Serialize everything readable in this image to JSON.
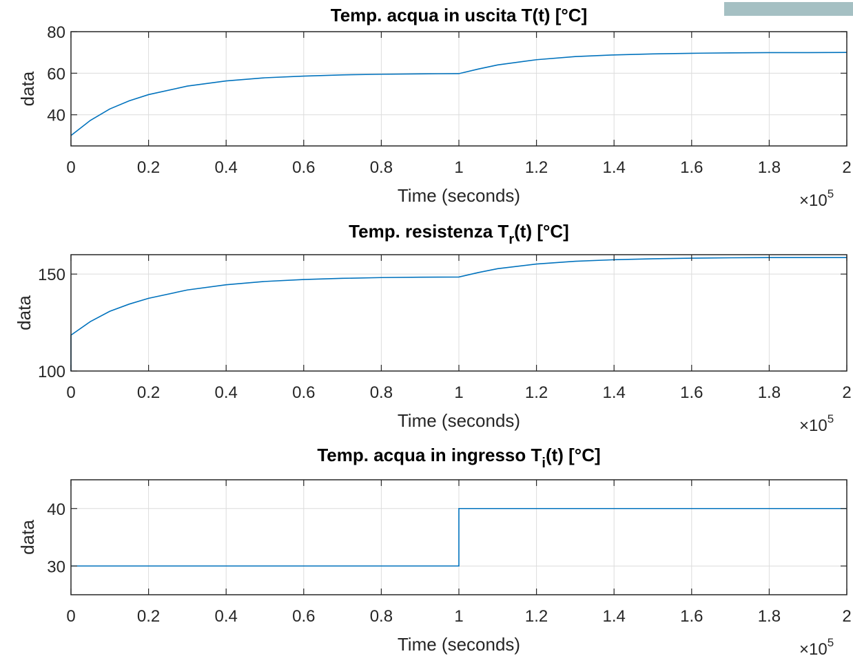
{
  "corner_bar_color": "#a5c0c3",
  "chart_data": [
    {
      "type": "line",
      "title": "Temp. acqua in uscita T(t) [°C]",
      "title_main": "Temp. acqua in uscita T(t) [°C]",
      "title_sub": "",
      "title_tail": "",
      "xlabel": "Time (seconds)",
      "ylabel": "data",
      "x_multiplier": "×10",
      "x_multiplier_exp": "5",
      "xlim": [
        0,
        200000
      ],
      "ylim": [
        25,
        80
      ],
      "xticks": [
        0,
        20000,
        40000,
        60000,
        80000,
        100000,
        120000,
        140000,
        160000,
        180000,
        200000
      ],
      "xtick_labels": [
        "0",
        "0.2",
        "0.4",
        "0.6",
        "0.8",
        "1",
        "1.2",
        "1.4",
        "1.6",
        "1.8",
        "2"
      ],
      "yticks": [
        40,
        60,
        80
      ],
      "ytick_labels": [
        "40",
        "60",
        "80"
      ],
      "grid": true,
      "color": "#0072bd",
      "series": [
        {
          "x": [
            0,
            5000,
            10000,
            15000,
            20000,
            30000,
            40000,
            50000,
            60000,
            70000,
            80000,
            90000,
            100000,
            105000,
            110000,
            120000,
            130000,
            140000,
            150000,
            160000,
            170000,
            180000,
            190000,
            200000
          ],
          "values": [
            30.0,
            37.3,
            42.8,
            46.7,
            49.7,
            53.8,
            56.3,
            57.8,
            58.6,
            59.2,
            59.5,
            59.7,
            59.8,
            62.0,
            64.0,
            66.5,
            68.0,
            68.8,
            69.3,
            69.6,
            69.8,
            69.9,
            69.9,
            70.0
          ]
        }
      ]
    },
    {
      "type": "line",
      "title": "Temp. resistenza Tr(t) [°C]",
      "title_main": "Temp. resistenza T",
      "title_sub": "r",
      "title_tail": "(t) [°C]",
      "xlabel": "Time (seconds)",
      "ylabel": "data",
      "x_multiplier": "×10",
      "x_multiplier_exp": "5",
      "xlim": [
        0,
        200000
      ],
      "ylim": [
        100,
        160
      ],
      "xticks": [
        0,
        20000,
        40000,
        60000,
        80000,
        100000,
        120000,
        140000,
        160000,
        180000,
        200000
      ],
      "xtick_labels": [
        "0",
        "0.2",
        "0.4",
        "0.6",
        "0.8",
        "1",
        "1.2",
        "1.4",
        "1.6",
        "1.8",
        "2"
      ],
      "yticks": [
        100,
        150
      ],
      "ytick_labels": [
        "100",
        "150"
      ],
      "grid": true,
      "color": "#0072bd",
      "series": [
        {
          "x": [
            0,
            0,
            5000,
            10000,
            15000,
            20000,
            30000,
            40000,
            50000,
            60000,
            70000,
            80000,
            90000,
            100000,
            105000,
            110000,
            120000,
            130000,
            140000,
            150000,
            160000,
            170000,
            180000,
            190000,
            200000
          ],
          "values": [
            100,
            118.5,
            125.5,
            130.8,
            134.5,
            137.5,
            141.8,
            144.5,
            146.2,
            147.2,
            147.8,
            148.2,
            148.4,
            148.5,
            150.8,
            152.8,
            155.2,
            156.6,
            157.4,
            157.9,
            158.2,
            158.4,
            158.5,
            158.5,
            158.5
          ]
        }
      ]
    },
    {
      "type": "line",
      "title": "Temp. acqua in ingresso Ti(t) [°C]",
      "title_main": "Temp. acqua in ingresso T",
      "title_sub": "i",
      "title_tail": "(t) [°C]",
      "xlabel": "Time (seconds)",
      "ylabel": "data",
      "x_multiplier": "×10",
      "x_multiplier_exp": "5",
      "xlim": [
        0,
        200000
      ],
      "ylim": [
        25,
        45
      ],
      "xticks": [
        0,
        20000,
        40000,
        60000,
        80000,
        100000,
        120000,
        140000,
        160000,
        180000,
        200000
      ],
      "xtick_labels": [
        "0",
        "0.2",
        "0.4",
        "0.6",
        "0.8",
        "1",
        "1.2",
        "1.4",
        "1.6",
        "1.8",
        "2"
      ],
      "yticks": [
        30,
        40
      ],
      "ytick_labels": [
        "30",
        "40"
      ],
      "grid": true,
      "color": "#0072bd",
      "series": [
        {
          "x": [
            0,
            100000,
            100000,
            200000
          ],
          "values": [
            30,
            30,
            40,
            40
          ]
        }
      ]
    }
  ]
}
